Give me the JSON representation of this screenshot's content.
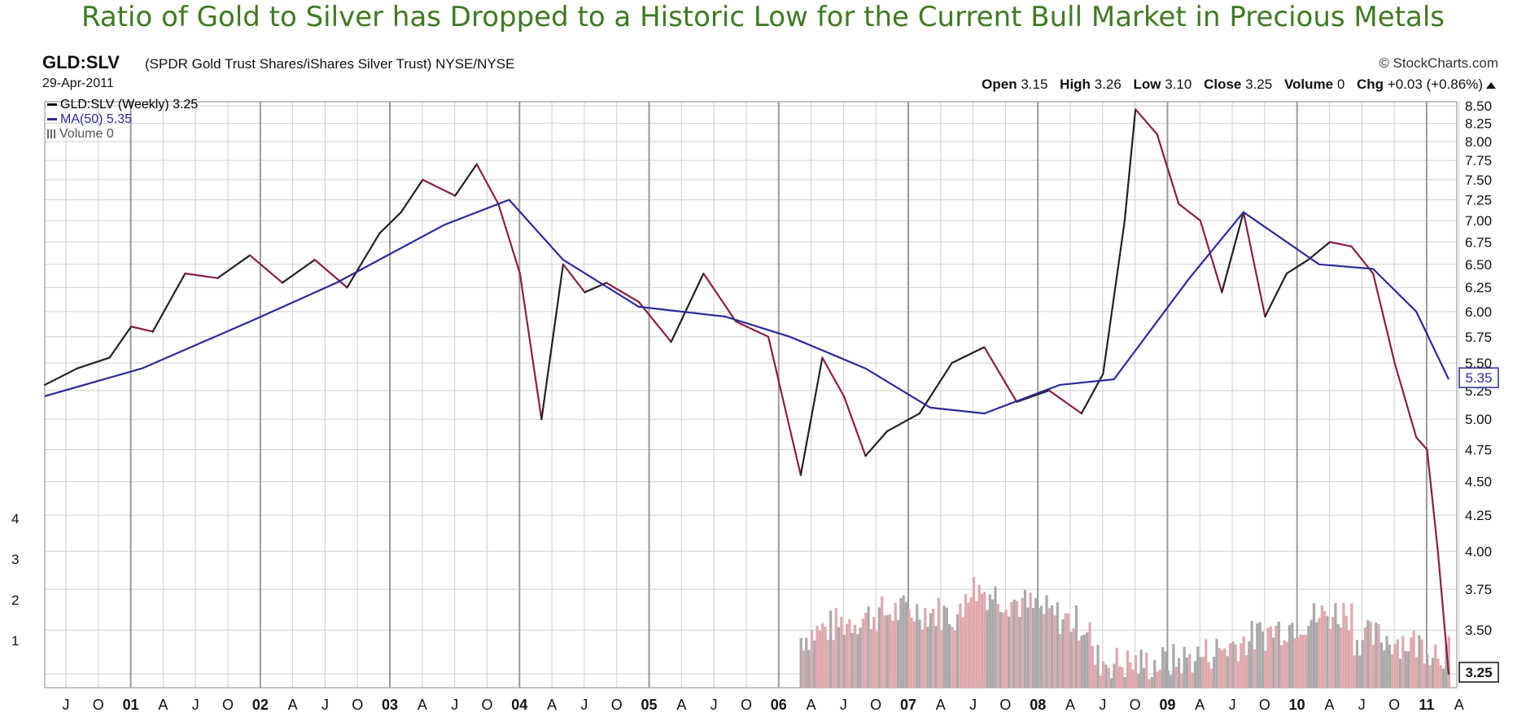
{
  "headline": "Ratio of Gold to Silver has Dropped to a Historic Low for the Current Bull Market in Precious Metals",
  "symbol": "GLD:SLV",
  "description": "(SPDR Gold Trust Shares/iShares Silver Trust) NYSE/NYSE",
  "date": "29-Apr-2011",
  "credit": "© StockCharts.com",
  "ohlc": {
    "open_label": "Open",
    "open": "3.15",
    "high_label": "High",
    "high": "3.26",
    "low_label": "Low",
    "low": "3.10",
    "close_label": "Close",
    "close": "3.25",
    "volume_label": "Volume",
    "volume": "0",
    "chg_label": "Chg",
    "chg": "+0.03 (+0.86%)"
  },
  "legend": {
    "price": "GLD:SLV (Weekly) 3.25",
    "ma": "MA(50) 5.35",
    "volume": "Volume 0"
  },
  "colors": {
    "up": "#222222",
    "down": "#8a2040",
    "ma": "#2a2a9a",
    "headline": "#3f7a22",
    "vol_up": "#a9a9a9",
    "vol_down": "#e0a8ab"
  },
  "chart_data": {
    "type": "line",
    "y_scale": "log",
    "ylim": [
      3.25,
      8.5
    ],
    "yticks": [
      "8.50",
      "8.25",
      "8.00",
      "7.75",
      "7.50",
      "7.25",
      "7.00",
      "6.75",
      "6.50",
      "6.25",
      "6.00",
      "5.75",
      "5.50",
      "5.25",
      "5.00",
      "4.75",
      "4.50",
      "4.25",
      "4.00",
      "3.75",
      "3.50",
      "3.25"
    ],
    "last_price_label": "3.25",
    "last_ma_label": "5.35",
    "volume_axis_ticks": [
      "4",
      "3",
      "2",
      "1"
    ],
    "x_tick_labels": [
      "J",
      "O",
      "01",
      "A",
      "J",
      "O",
      "02",
      "A",
      "J",
      "O",
      "03",
      "A",
      "J",
      "O",
      "04",
      "A",
      "J",
      "O",
      "05",
      "A",
      "J",
      "O",
      "06",
      "A",
      "J",
      "O",
      "07",
      "A",
      "J",
      "O",
      "08",
      "A",
      "J",
      "O",
      "09",
      "A",
      "J",
      "O",
      "10",
      "A",
      "J",
      "O",
      "11",
      "A"
    ],
    "x_start": "2000-06",
    "x_end": "2011-04",
    "series": [
      {
        "name": "GLD:SLV (Weekly)",
        "x": [
          "2000-06",
          "2000-09",
          "2000-12",
          "2001-02",
          "2001-04",
          "2001-07",
          "2001-10",
          "2002-01",
          "2002-04",
          "2002-07",
          "2002-10",
          "2003-01",
          "2003-03",
          "2003-05",
          "2003-08",
          "2003-10",
          "2003-12",
          "2004-02",
          "2004-04",
          "2004-06",
          "2004-08",
          "2004-10",
          "2005-01",
          "2005-04",
          "2005-07",
          "2005-10",
          "2006-01",
          "2006-04",
          "2006-06",
          "2006-08",
          "2006-10",
          "2006-12",
          "2007-03",
          "2007-06",
          "2007-09",
          "2007-12",
          "2008-03",
          "2008-06",
          "2008-08",
          "2008-10",
          "2008-11",
          "2009-01",
          "2009-03",
          "2009-05",
          "2009-07",
          "2009-09",
          "2009-11",
          "2010-01",
          "2010-03",
          "2010-05",
          "2010-07",
          "2010-09",
          "2010-11",
          "2011-01",
          "2011-02",
          "2011-03",
          "2011-04"
        ],
        "values": [
          5.3,
          5.45,
          5.55,
          5.85,
          5.8,
          6.4,
          6.35,
          6.6,
          6.3,
          6.55,
          6.25,
          6.85,
          7.1,
          7.5,
          7.3,
          7.7,
          7.2,
          6.4,
          5.0,
          6.5,
          6.2,
          6.3,
          6.1,
          5.7,
          6.4,
          5.9,
          5.75,
          4.55,
          5.55,
          5.2,
          4.7,
          4.9,
          5.05,
          5.5,
          5.65,
          5.15,
          5.25,
          5.05,
          5.4,
          7.0,
          8.45,
          8.1,
          7.2,
          7.0,
          6.2,
          7.1,
          5.95,
          6.4,
          6.55,
          6.75,
          6.7,
          6.4,
          5.5,
          4.85,
          4.75,
          4.0,
          3.25
        ]
      },
      {
        "name": "MA(50)",
        "x": [
          "2000-06",
          "2001-03",
          "2002-01",
          "2002-09",
          "2003-07",
          "2004-01",
          "2004-06",
          "2005-01",
          "2005-09",
          "2006-03",
          "2006-10",
          "2007-04",
          "2007-09",
          "2008-04",
          "2008-09",
          "2009-04",
          "2009-09",
          "2010-04",
          "2010-09",
          "2011-01",
          "2011-04"
        ],
        "values": [
          5.2,
          5.45,
          5.9,
          6.3,
          6.95,
          7.25,
          6.55,
          6.05,
          5.95,
          5.75,
          5.45,
          5.1,
          5.05,
          5.3,
          5.35,
          6.35,
          7.1,
          6.5,
          6.45,
          6.0,
          5.35
        ]
      }
    ],
    "volume": {
      "shown_from": "2006-04",
      "max_axis": 4
    }
  }
}
